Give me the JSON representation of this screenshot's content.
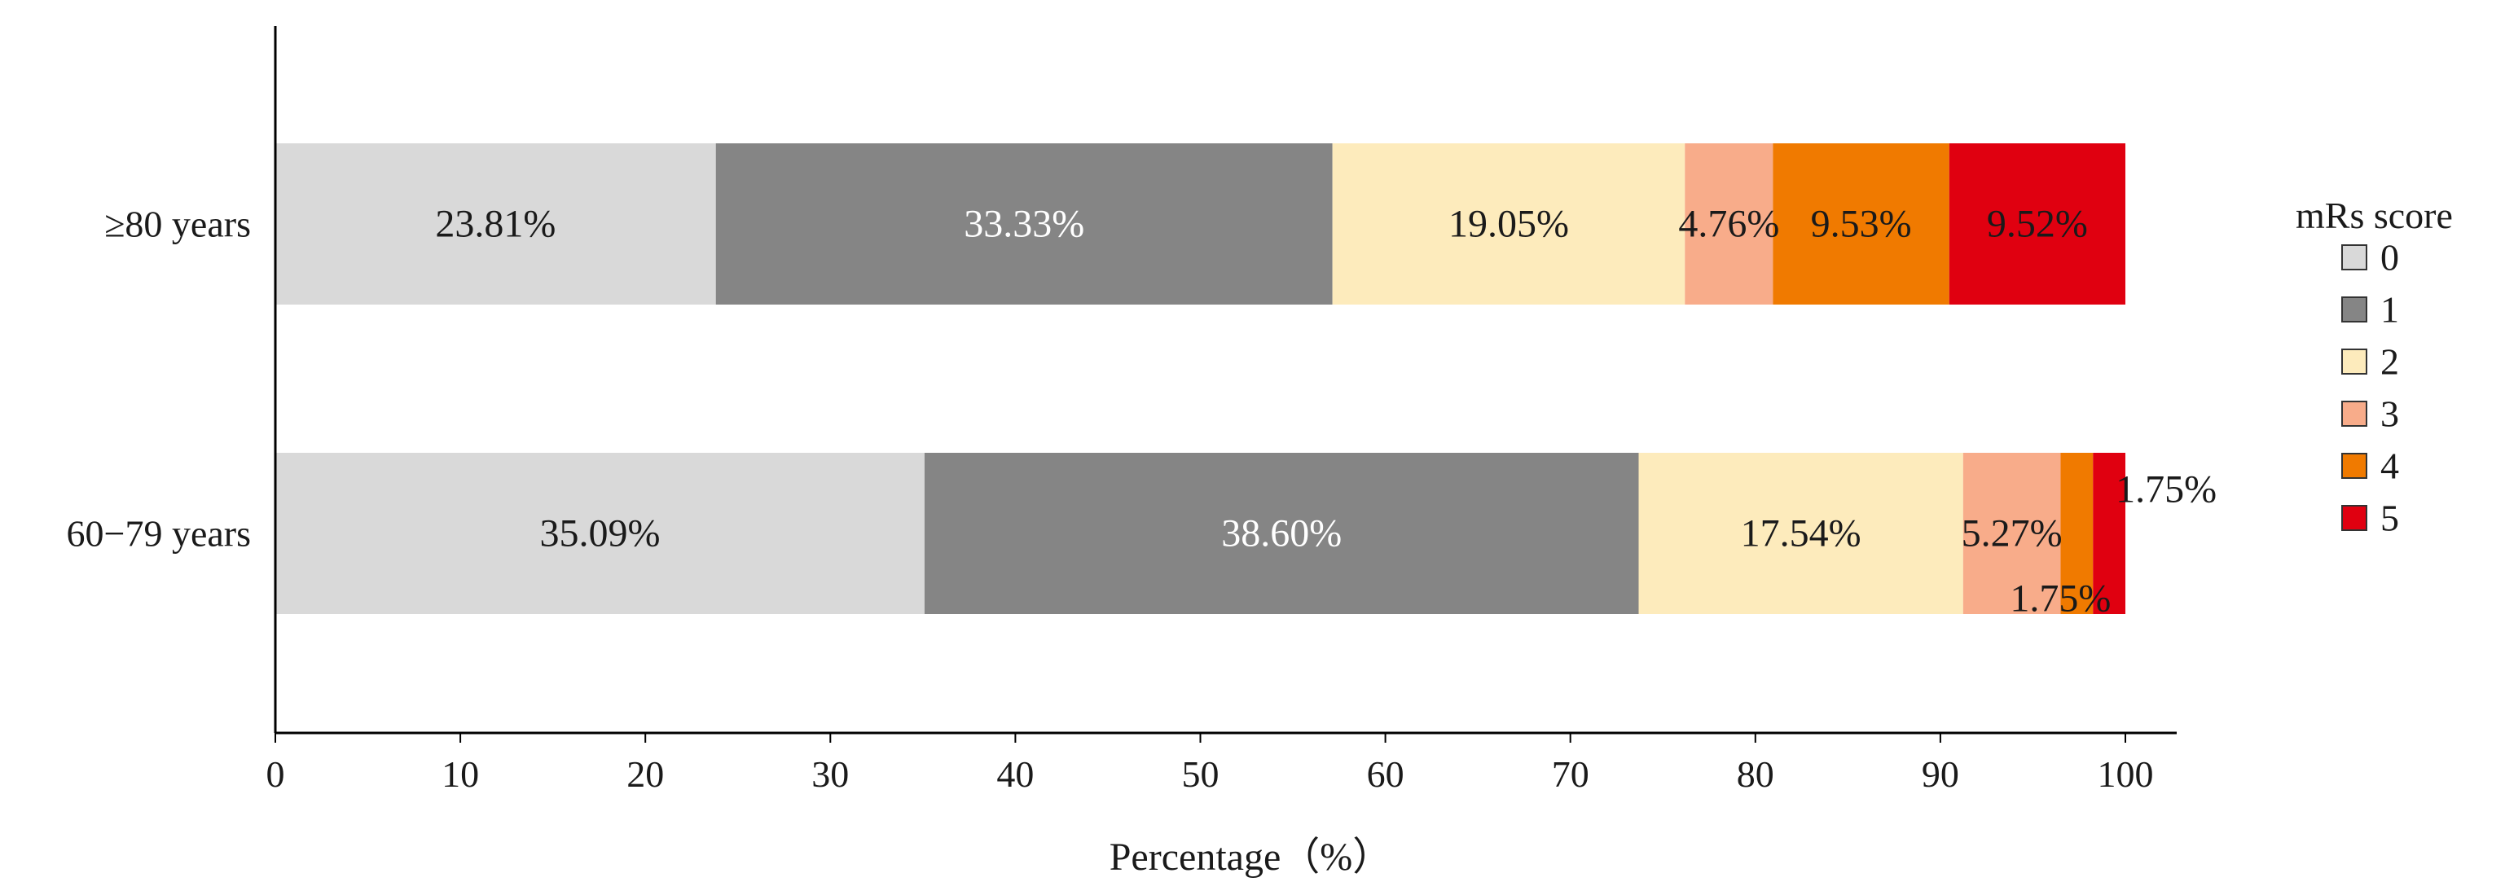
{
  "chart_data": {
    "type": "bar",
    "orientation": "horizontal",
    "stacked": true,
    "categories": [
      "≥80 years",
      "60−79 years"
    ],
    "xlabel": "Percentage（%）",
    "ylabel": "",
    "xlim": [
      0,
      100
    ],
    "xticks": [
      "0",
      "10",
      "20",
      "30",
      "40",
      "50",
      "60",
      "70",
      "80",
      "90",
      "100"
    ],
    "legend": {
      "title": "mRs score",
      "position": "right"
    },
    "grid": false,
    "series": [
      {
        "name": "0",
        "color": "#D9D9D9",
        "label_color": "#1a1a1a",
        "values": [
          23.81,
          35.09
        ],
        "labels": [
          "23.81%",
          "35.09%"
        ]
      },
      {
        "name": "1",
        "color": "#858585",
        "label_color": "#ffffff",
        "values": [
          33.33,
          38.6
        ],
        "labels": [
          "33.33%",
          "38.60%"
        ]
      },
      {
        "name": "2",
        "color": "#FDEBBC",
        "label_color": "#1a1a1a",
        "values": [
          19.05,
          17.54
        ],
        "labels": [
          "19.05%",
          "17.54%"
        ]
      },
      {
        "name": "3",
        "color": "#F8AC8A",
        "label_color": "#1a1a1a",
        "values": [
          4.76,
          5.27
        ],
        "labels": [
          "4.76%",
          "5.27%"
        ]
      },
      {
        "name": "4",
        "color": "#F07A00",
        "label_color": "#1a1a1a",
        "values": [
          9.53,
          1.75
        ],
        "labels": [
          "9.53%",
          "1.75%"
        ]
      },
      {
        "name": "5",
        "color": "#E00010",
        "label_color": "#1a1a1a",
        "values": [
          9.52,
          1.75
        ],
        "labels": [
          "9.52%",
          "1.75%"
        ]
      }
    ]
  }
}
